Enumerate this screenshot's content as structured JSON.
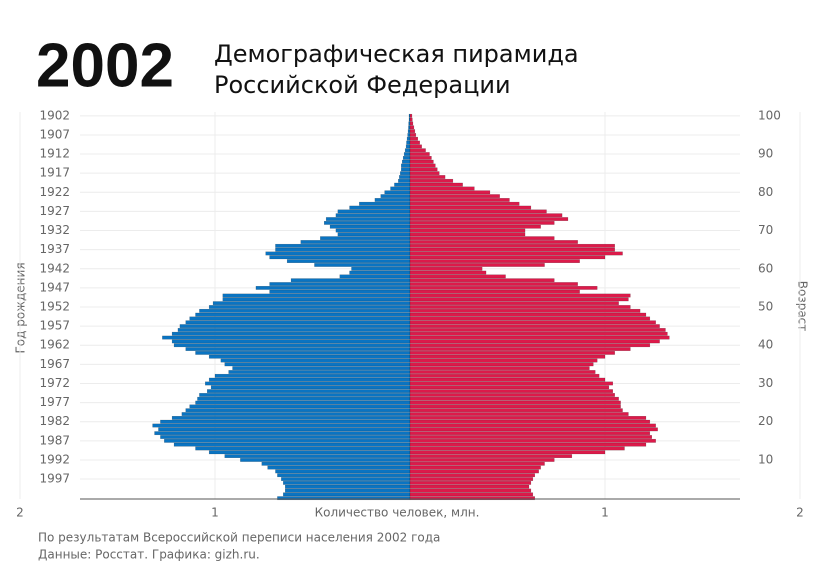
{
  "chart_data": {
    "type": "pyramid",
    "headline": "2002",
    "title": "Демографическая пирамида",
    "subtitle": "Российской Федерации",
    "ylabel": "Год рождения",
    "y2label": "Возраст",
    "xlabel": "Количество человек, млн.",
    "footnote": "По результатам Всероссийской переписи населения 2002 года",
    "source": "Данные: Росстат. Графика: gizh.ru.",
    "y": [
      1902,
      1903,
      1904,
      1905,
      1906,
      1907,
      1908,
      1909,
      1910,
      1911,
      1912,
      1913,
      1914,
      1915,
      1916,
      1917,
      1918,
      1919,
      1920,
      1921,
      1922,
      1923,
      1924,
      1925,
      1926,
      1927,
      1928,
      1929,
      1930,
      1931,
      1932,
      1933,
      1934,
      1935,
      1936,
      1937,
      1938,
      1939,
      1940,
      1941,
      1942,
      1943,
      1944,
      1945,
      1946,
      1947,
      1948,
      1949,
      1950,
      1951,
      1952,
      1953,
      1954,
      1955,
      1956,
      1957,
      1958,
      1959,
      1960,
      1961,
      1962,
      1963,
      1964,
      1965,
      1966,
      1967,
      1968,
      1969,
      1970,
      1971,
      1972,
      1973,
      1974,
      1975,
      1976,
      1977,
      1978,
      1979,
      1980,
      1981,
      1982,
      1983,
      1984,
      1985,
      1986,
      1987,
      1988,
      1989,
      1990,
      1991,
      1992,
      1993,
      1994,
      1995,
      1996,
      1997,
      1998,
      1999,
      2000,
      2001,
      2002
    ],
    "series": [
      {
        "side": "left",
        "color": "#0a74c2",
        "values": [
          0.005,
          0.005,
          0.007,
          0.008,
          0.01,
          0.012,
          0.015,
          0.018,
          0.02,
          0.025,
          0.03,
          0.035,
          0.04,
          0.045,
          0.045,
          0.05,
          0.055,
          0.06,
          0.08,
          0.1,
          0.13,
          0.15,
          0.18,
          0.26,
          0.31,
          0.37,
          0.38,
          0.43,
          0.44,
          0.41,
          0.38,
          0.37,
          0.46,
          0.56,
          0.69,
          0.69,
          0.74,
          0.72,
          0.63,
          0.49,
          0.3,
          0.31,
          0.36,
          0.61,
          0.72,
          0.79,
          0.72,
          0.96,
          0.96,
          1.01,
          1.03,
          1.08,
          1.1,
          1.13,
          1.15,
          1.18,
          1.19,
          1.22,
          1.27,
          1.22,
          1.21,
          1.15,
          1.1,
          1.03,
          0.97,
          0.95,
          0.91,
          0.93,
          1.0,
          1.03,
          1.05,
          1.02,
          1.04,
          1.08,
          1.09,
          1.1,
          1.13,
          1.15,
          1.17,
          1.22,
          1.28,
          1.32,
          1.29,
          1.31,
          1.28,
          1.26,
          1.21,
          1.1,
          1.03,
          0.95,
          0.87,
          0.76,
          0.73,
          0.69,
          0.68,
          0.66,
          0.65,
          0.64,
          0.64,
          0.65,
          0.68
        ]
      },
      {
        "side": "right",
        "color": "#dc1a4a",
        "values": [
          0.01,
          0.012,
          0.015,
          0.02,
          0.025,
          0.03,
          0.04,
          0.05,
          0.06,
          0.08,
          0.1,
          0.11,
          0.12,
          0.13,
          0.14,
          0.15,
          0.18,
          0.22,
          0.27,
          0.33,
          0.41,
          0.46,
          0.51,
          0.56,
          0.62,
          0.7,
          0.78,
          0.81,
          0.74,
          0.67,
          0.59,
          0.59,
          0.74,
          0.86,
          1.05,
          1.05,
          1.09,
          1.0,
          0.87,
          0.69,
          0.37,
          0.39,
          0.49,
          0.74,
          0.86,
          0.96,
          0.87,
          1.13,
          1.12,
          1.07,
          1.13,
          1.18,
          1.21,
          1.23,
          1.26,
          1.28,
          1.31,
          1.32,
          1.33,
          1.28,
          1.23,
          1.13,
          1.05,
          1.0,
          0.96,
          0.94,
          0.92,
          0.95,
          0.97,
          1.0,
          1.04,
          1.02,
          1.04,
          1.05,
          1.07,
          1.08,
          1.08,
          1.09,
          1.12,
          1.21,
          1.23,
          1.26,
          1.27,
          1.23,
          1.24,
          1.26,
          1.21,
          1.1,
          1.0,
          0.83,
          0.74,
          0.69,
          0.67,
          0.66,
          0.64,
          0.63,
          0.62,
          0.61,
          0.62,
          0.63,
          0.64
        ]
      }
    ],
    "xlim": [
      0,
      2
    ],
    "xticks": [
      1,
      2
    ],
    "ylim": [
      1901,
      2003
    ],
    "yticks": [
      1902,
      1907,
      1912,
      1917,
      1922,
      1927,
      1932,
      1937,
      1942,
      1947,
      1952,
      1957,
      1962,
      1967,
      1972,
      1977,
      1982,
      1987,
      1992,
      1997
    ],
    "y2lim": [
      101,
      -1
    ],
    "y2ticks": [
      10,
      20,
      30,
      40,
      50,
      60,
      70,
      80,
      90,
      100
    ],
    "grid": true
  }
}
